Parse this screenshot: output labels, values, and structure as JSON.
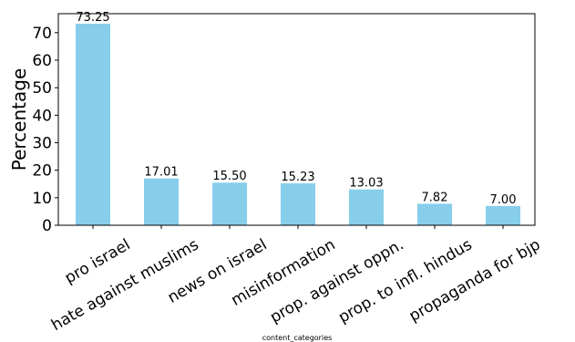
{
  "chart_data": {
    "type": "bar",
    "categories": [
      "pro israel",
      "hate against muslims",
      "news on israel",
      "misinformation",
      "prop. against oppn.",
      "prop. to infl. hindus",
      "propaganda for bjp"
    ],
    "values": [
      73.25,
      17.01,
      15.5,
      15.23,
      13.03,
      7.82,
      7.0
    ],
    "value_labels": [
      "73.25",
      "17.01",
      "15.50",
      "15.23",
      "13.03",
      "7.82",
      "7.00"
    ],
    "ylabel": "Percentage",
    "xlabel": "content_categories",
    "ylim": [
      0,
      76.9
    ],
    "yticks": [
      0,
      10,
      20,
      30,
      40,
      50,
      60,
      70
    ],
    "bar_color": "#87ceeb",
    "grid": false,
    "legend": "none"
  }
}
